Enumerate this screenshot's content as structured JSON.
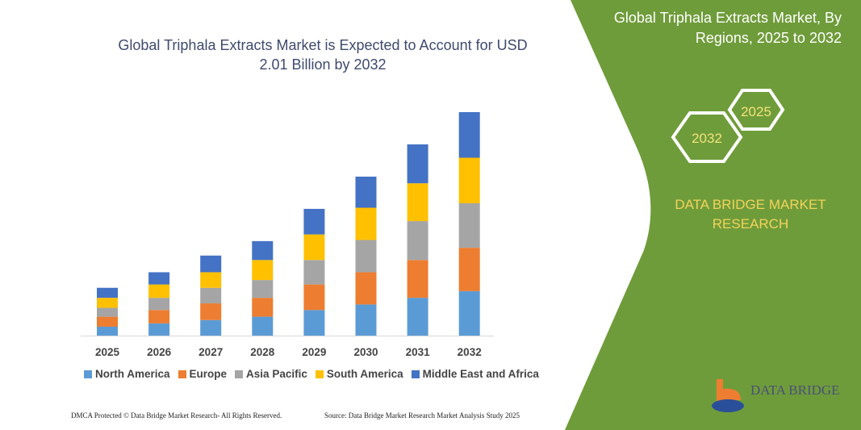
{
  "header": {
    "title": "Global Triphala Extracts Market is Expected to Account for USD 2.01 Billion by 2032"
  },
  "side_panel": {
    "title": "Global Triphala Extracts Market, By Regions, 2025 to 2032",
    "hex_years": [
      "2025",
      "2032"
    ],
    "brand": "DATA BRIDGE MARKET RESEARCH",
    "logo_text": "DATA BRIDGE",
    "color": "#6f9c3a"
  },
  "footer": {
    "left": "DMCA Protected © Data Bridge Market Research- All Rights Reserved.",
    "right": "Source: Data Bridge Market Research  Market Analysis Study 2025"
  },
  "chart_data": {
    "type": "bar",
    "stacked": true,
    "title": "Global Triphala Extracts Market is Expected to Account for USD 2.01 Billion by 2032",
    "xlabel": "",
    "ylabel": "",
    "categories": [
      "2025",
      "2026",
      "2027",
      "2028",
      "2029",
      "2030",
      "2031",
      "2032"
    ],
    "ylim": [
      0,
      2.01
    ],
    "grid": false,
    "legend": "bottom",
    "series": [
      {
        "name": "North America",
        "color": "#5b9bd5",
        "values": [
          0.08,
          0.11,
          0.14,
          0.17,
          0.23,
          0.28,
          0.34,
          0.4
        ]
      },
      {
        "name": "Europe",
        "color": "#ed7d31",
        "values": [
          0.09,
          0.12,
          0.15,
          0.17,
          0.23,
          0.29,
          0.34,
          0.39
        ]
      },
      {
        "name": "Asia Pacific",
        "color": "#a5a5a5",
        "values": [
          0.08,
          0.11,
          0.14,
          0.16,
          0.22,
          0.29,
          0.35,
          0.4
        ]
      },
      {
        "name": "South America",
        "color": "#ffc000",
        "values": [
          0.09,
          0.12,
          0.14,
          0.18,
          0.23,
          0.29,
          0.34,
          0.41
        ]
      },
      {
        "name": "Middle East and Africa",
        "color": "#4472c4",
        "values": [
          0.09,
          0.11,
          0.15,
          0.17,
          0.23,
          0.28,
          0.35,
          0.41
        ]
      }
    ]
  }
}
